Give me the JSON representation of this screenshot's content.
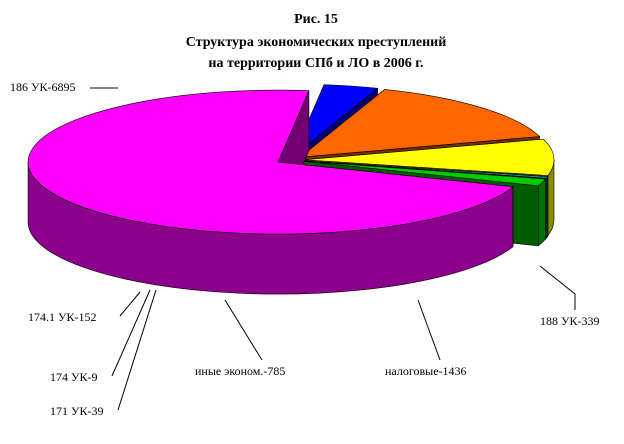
{
  "chart_data": {
    "type": "pie",
    "title": [
      "Рис. 15",
      "Структура экономических преступлений",
      "на территории СПб и ЛО в 2006 г."
    ],
    "categories": [
      "186 УК-6895",
      "188 УК-339",
      "налоговые-1436",
      "иные эконом.-785",
      "171 УК-39",
      "174 УК-9",
      "174.1 УК-152"
    ],
    "values": [
      6895,
      339,
      1436,
      785,
      39,
      9,
      152
    ],
    "colors": [
      "#ff00ff",
      "#0000ff",
      "#ff6600",
      "#ffff00",
      "#00a0a8",
      "#ff0000",
      "#00cc00"
    ]
  }
}
